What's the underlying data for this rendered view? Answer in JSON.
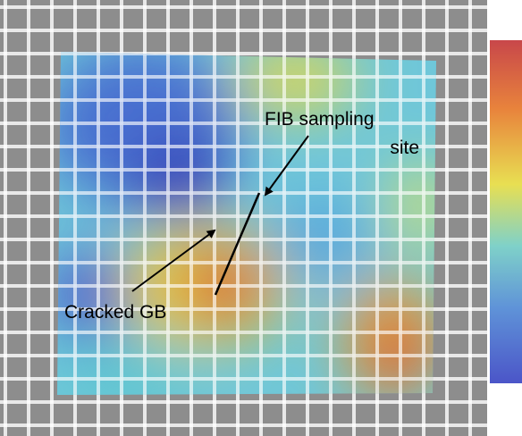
{
  "labels": {
    "fib_sampling_site": [
      "FIB sampling",
      "site"
    ],
    "cracked_gb": "Cracked GB"
  }
}
